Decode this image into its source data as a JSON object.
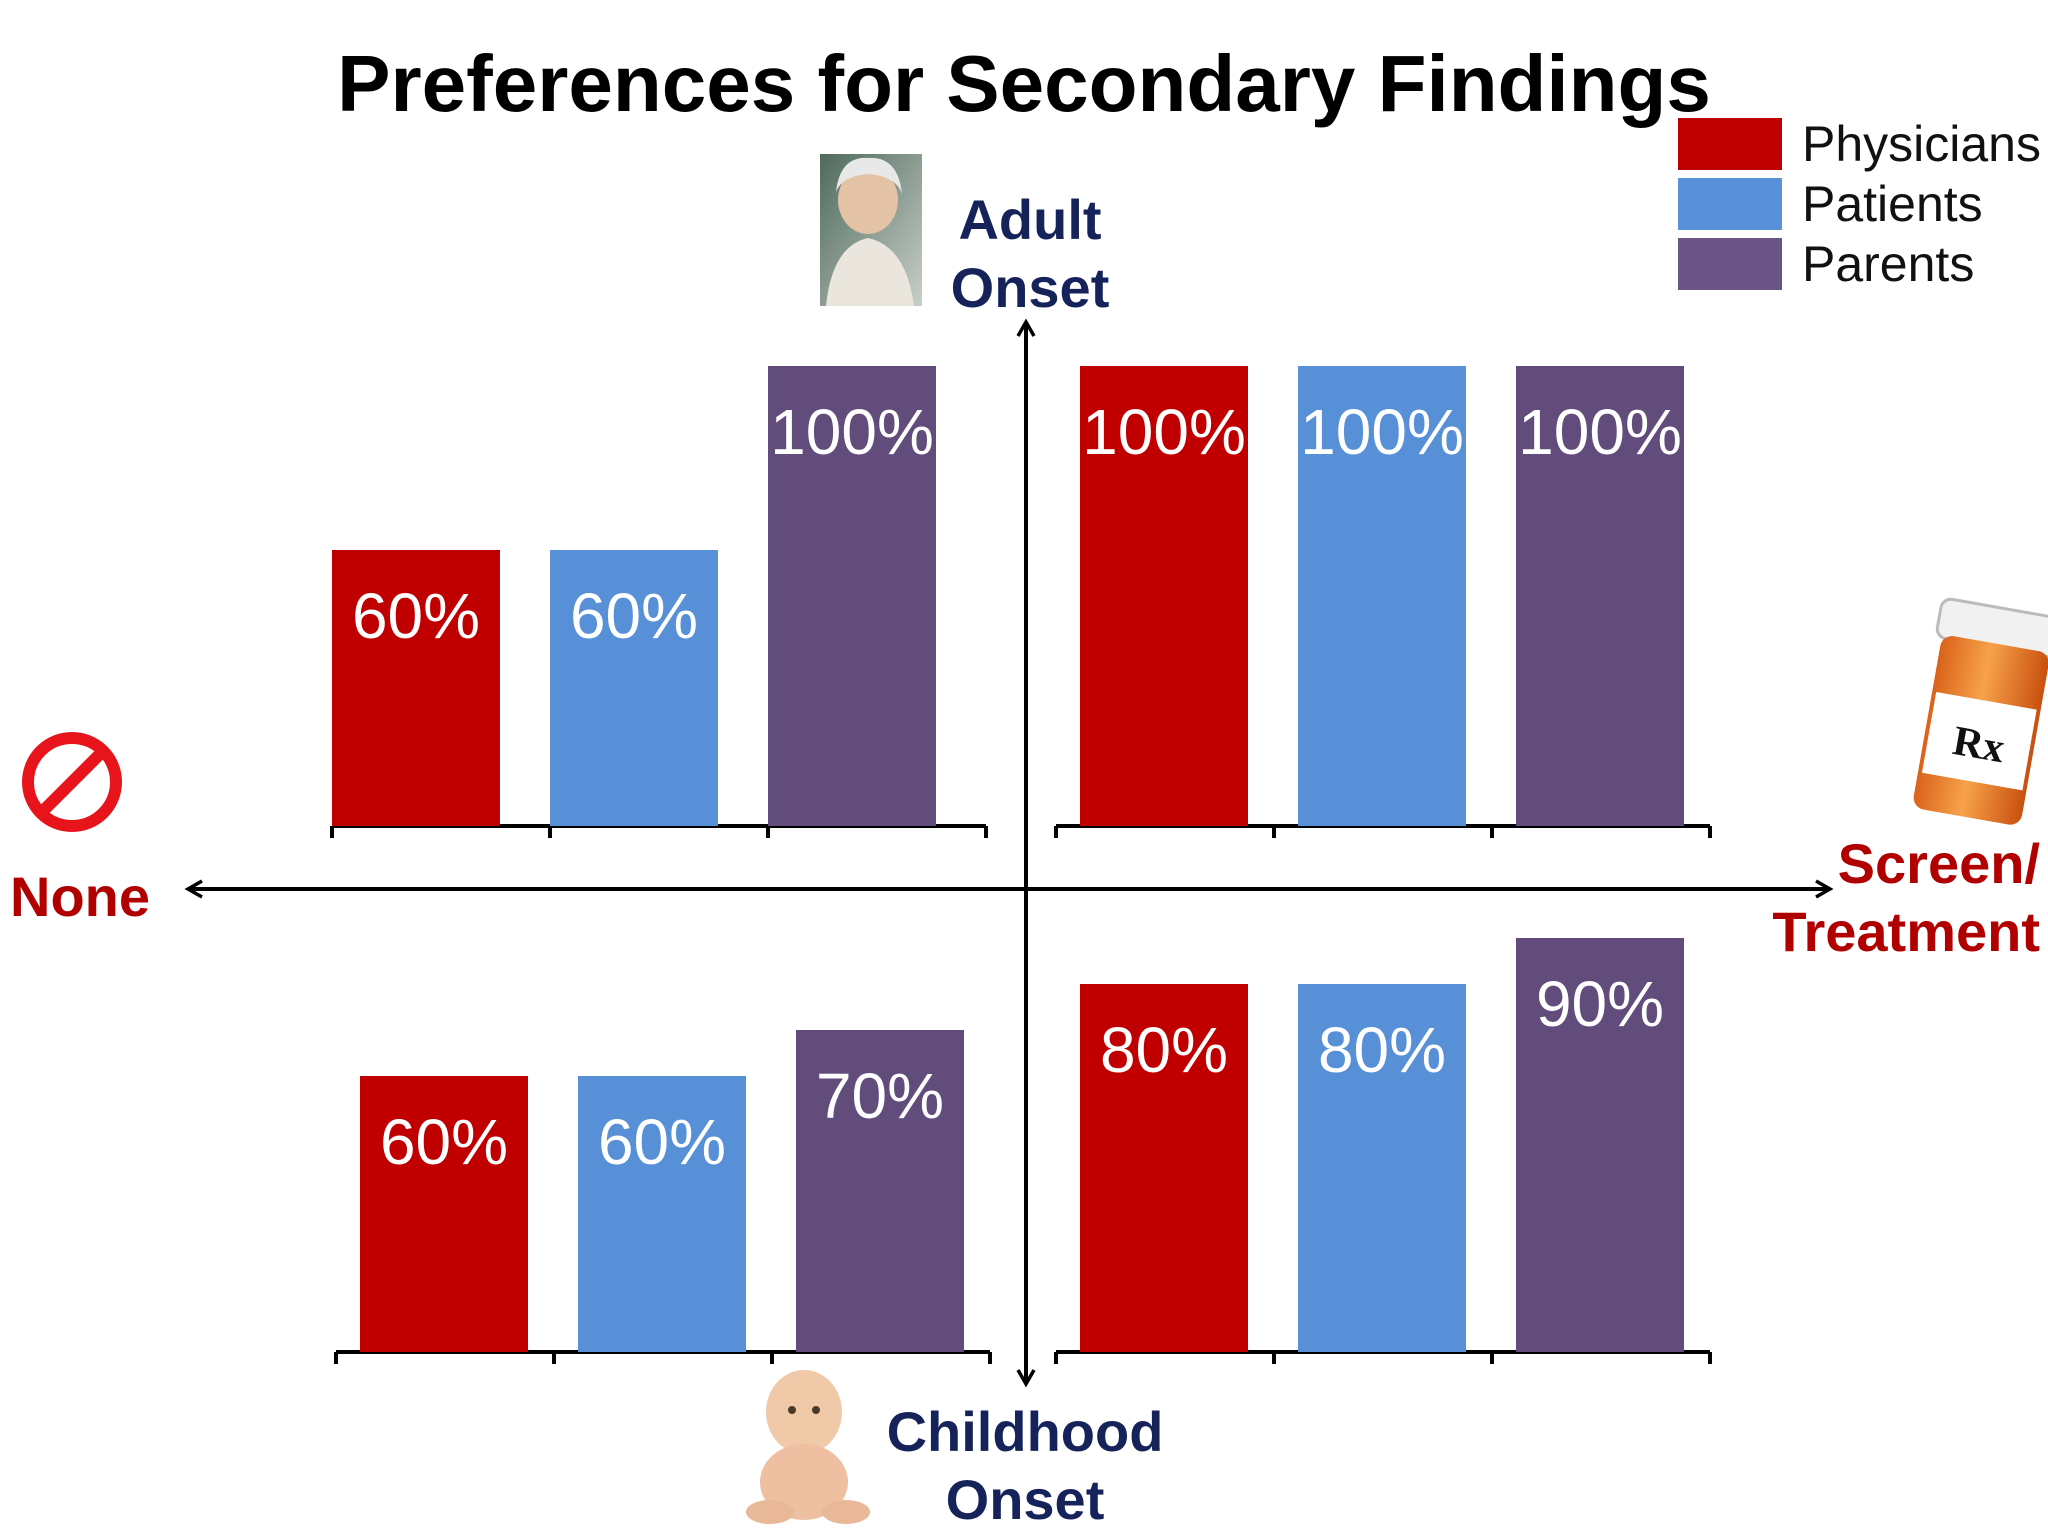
{
  "chart_data": {
    "type": "bar",
    "title": "Preferences for Secondary Findings",
    "axes": {
      "top": [
        "Adult",
        "Onset"
      ],
      "bottom": [
        "Childhood",
        "Onset"
      ],
      "left": "None",
      "right": [
        "Screen/",
        "Treatment"
      ]
    },
    "ylim": [
      0,
      100
    ],
    "legend_position": "top-right",
    "series": [
      {
        "name": "Physicians",
        "color": "#c00000"
      },
      {
        "name": "Patients",
        "color": "#5890d8"
      },
      {
        "name": "Parents",
        "color": "#614c7b"
      }
    ],
    "panels": [
      {
        "id": "adult-none",
        "labels": [
          "60%",
          "60%",
          "100%"
        ],
        "values": [
          60,
          60,
          100
        ]
      },
      {
        "id": "adult-treatment",
        "labels": [
          "100%",
          "100%",
          "100%"
        ],
        "values": [
          100,
          100,
          100
        ]
      },
      {
        "id": "childhood-none",
        "labels": [
          "60%",
          "60%",
          "70%"
        ],
        "values": [
          60,
          60,
          70
        ]
      },
      {
        "id": "childhood-treatment",
        "labels": [
          "80%",
          "80%",
          "90%"
        ],
        "values": [
          80,
          80,
          90
        ]
      }
    ]
  },
  "images": {
    "elderly_photo": "elderly-woman-photo",
    "baby_photo": "baby-photo",
    "none_icon": "prohibited-icon",
    "pill_icon": "pill-bottle-icon",
    "pill_bottle_text": "Rx"
  }
}
